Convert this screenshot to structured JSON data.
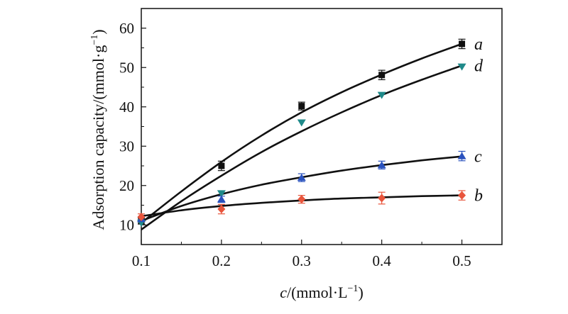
{
  "chart_data": {
    "type": "scatter",
    "xlabel_italic": "c",
    "xlabel_rest": "/(mmol·L",
    "xlabel_sup": "−1",
    "xlabel_close": ")",
    "ylabel_main": "Adsorption capacity/(mmol·g",
    "ylabel_sup": "−1",
    "ylabel_close": ")",
    "xlim": [
      0.1,
      0.55
    ],
    "ylim": [
      5,
      65
    ],
    "xticks": [
      0.1,
      0.2,
      0.3,
      0.4,
      0.5
    ],
    "xtick_labels": [
      "0.1",
      "0.2",
      "0.3",
      "0.4",
      "0.5"
    ],
    "yticks": [
      10,
      20,
      30,
      40,
      50,
      60
    ],
    "ytick_labels": [
      "10",
      "20",
      "30",
      "40",
      "50",
      "60"
    ],
    "grid": false,
    "series": [
      {
        "name": "a",
        "marker": "square",
        "marker_color": "#111111",
        "curve_color": "#111111",
        "x": [
          0.1,
          0.2,
          0.3,
          0.4,
          0.5
        ],
        "y": [
          11,
          25,
          40.2,
          48.1,
          56.0
        ],
        "yerr": [
          0.8,
          1.2,
          1.0,
          1.2,
          1.2
        ],
        "fit": [
          [
            0.1,
            10.5
          ],
          [
            0.15,
            18.5
          ],
          [
            0.2,
            26.0
          ],
          [
            0.25,
            32.7
          ],
          [
            0.3,
            38.6
          ],
          [
            0.35,
            43.7
          ],
          [
            0.4,
            48.2
          ],
          [
            0.45,
            52.3
          ],
          [
            0.5,
            56.0
          ]
        ]
      },
      {
        "name": "d",
        "marker": "triangle-down",
        "marker_color": "#1f8a8a",
        "curve_color": "#111111",
        "x": [
          0.1,
          0.2,
          0.3,
          0.4,
          0.5
        ],
        "y": [
          10.5,
          18,
          36,
          43,
          50.2
        ],
        "yerr": [
          0,
          0,
          0,
          0,
          0
        ],
        "fit": [
          [
            0.1,
            8.8
          ],
          [
            0.15,
            16.0
          ],
          [
            0.2,
            22.5
          ],
          [
            0.25,
            28.5
          ],
          [
            0.3,
            33.8
          ],
          [
            0.35,
            38.6
          ],
          [
            0.4,
            43.0
          ],
          [
            0.45,
            46.9
          ],
          [
            0.5,
            50.5
          ]
        ]
      },
      {
        "name": "c",
        "marker": "triangle-up",
        "marker_color": "#2a52be",
        "curve_color": "#111111",
        "x": [
          0.1,
          0.2,
          0.3,
          0.4,
          0.5
        ],
        "y": [
          11.5,
          16.5,
          22,
          25.2,
          27.5
        ],
        "yerr": [
          0.6,
          0.8,
          1.0,
          1.0,
          1.2
        ],
        "fit": [
          [
            0.1,
            11.0
          ],
          [
            0.15,
            14.8
          ],
          [
            0.2,
            17.8
          ],
          [
            0.25,
            20.2
          ],
          [
            0.3,
            22.1
          ],
          [
            0.35,
            23.8
          ],
          [
            0.4,
            25.2
          ],
          [
            0.45,
            26.4
          ],
          [
            0.5,
            27.4
          ]
        ]
      },
      {
        "name": "b",
        "marker": "diamond",
        "marker_color": "#e8553c",
        "curve_color": "#111111",
        "x": [
          0.1,
          0.2,
          0.3,
          0.4,
          0.5
        ],
        "y": [
          12,
          14,
          16.5,
          16.8,
          17.5
        ],
        "yerr": [
          0.8,
          1.2,
          1.0,
          1.5,
          1.2
        ],
        "fit": [
          [
            0.1,
            12.2
          ],
          [
            0.15,
            13.7
          ],
          [
            0.2,
            14.8
          ],
          [
            0.25,
            15.6
          ],
          [
            0.3,
            16.2
          ],
          [
            0.35,
            16.7
          ],
          [
            0.4,
            17.0
          ],
          [
            0.45,
            17.3
          ],
          [
            0.5,
            17.5
          ]
        ]
      }
    ]
  }
}
